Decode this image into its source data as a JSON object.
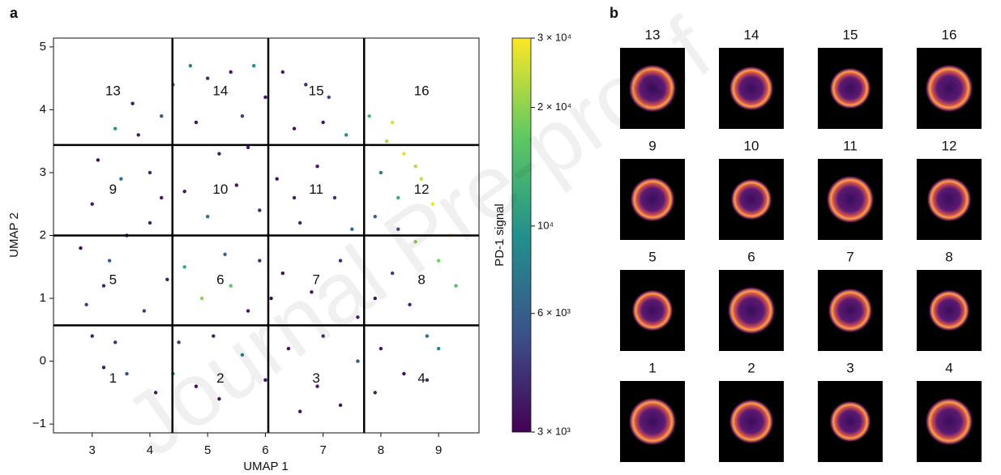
{
  "chart_data": [
    {
      "type": "scatter",
      "panel_label": "a",
      "xlabel": "UMAP 1",
      "ylabel": "UMAP 2",
      "xlim": [
        2.33,
        9.7
      ],
      "ylim": [
        -1.14,
        5.14
      ],
      "xticks": [
        3,
        4,
        5,
        6,
        7,
        8,
        9
      ],
      "yticks": [
        {
          "value": -1,
          "label": "−1"
        },
        0,
        1,
        2,
        3,
        4,
        5
      ],
      "x_boundaries": [
        4.39,
        6.05,
        7.71
      ],
      "y_boundaries": [
        0.57,
        2.0,
        3.44
      ],
      "regions": [
        "1",
        "2",
        "3",
        "4",
        "5",
        "6",
        "7",
        "8",
        "9",
        "10",
        "11",
        "12",
        "13",
        "14",
        "15",
        "16"
      ],
      "x": [
        3.0,
        3.2,
        3.4,
        3.1,
        3.6,
        3.8,
        3.5,
        2.8,
        3.3,
        3.9,
        4.1,
        4.0,
        3.7,
        4.2,
        4.3,
        2.9,
        3.6,
        4.0,
        3.2,
        4.4,
        4.7,
        5.0,
        5.4,
        5.8,
        4.8,
        5.2,
        5.6,
        6.0,
        4.6,
        5.0,
        5.5,
        5.9,
        4.6,
        4.9,
        5.3,
        5.7,
        4.5,
        4.8,
        5.2,
        5.6,
        6.0,
        5.1,
        5.9,
        6.3,
        6.7,
        7.1,
        6.5,
        6.9,
        7.4,
        6.2,
        6.6,
        7.2,
        7.5,
        6.3,
        6.8,
        7.3,
        7.6,
        6.4,
        6.9,
        7.3,
        6.6,
        7.6,
        7.0,
        7.8,
        8.1,
        8.4,
        8.7,
        8.0,
        8.9,
        9.2,
        8.3,
        7.9,
        9.0,
        8.6,
        9.3,
        8.2,
        7.9,
        8.5,
        8.8,
        8.0,
        8.4,
        8.8,
        9.0,
        7.9,
        8.2,
        8.6,
        8.3,
        4.2,
        3.4,
        5.4,
        6.1,
        6.5,
        7.0,
        5.7,
        4.4,
        3.0
      ],
      "y": [
        2.5,
        1.2,
        0.3,
        3.2,
        -0.2,
        3.6,
        2.9,
        1.8,
        1.6,
        0.8,
        -0.5,
        2.2,
        4.1,
        3.9,
        1.3,
        0.9,
        2.0,
        3.0,
        -0.1,
        4.4,
        4.7,
        4.5,
        4.6,
        4.7,
        3.8,
        3.3,
        3.9,
        4.2,
        2.7,
        2.3,
        2.8,
        2.4,
        1.5,
        1.0,
        1.7,
        0.8,
        0.3,
        -0.4,
        -0.6,
        0.1,
        -0.3,
        0.4,
        1.6,
        4.6,
        4.4,
        4.2,
        3.7,
        3.1,
        3.6,
        2.9,
        2.2,
        2.6,
        2.1,
        1.4,
        1.1,
        1.6,
        0.7,
        0.2,
        -0.4,
        -0.7,
        -0.8,
        0.0,
        0.4,
        3.9,
        3.5,
        3.3,
        2.9,
        3.0,
        2.5,
        2.0,
        2.6,
        2.3,
        1.6,
        1.9,
        1.2,
        1.4,
        1.0,
        0.9,
        0.4,
        0.2,
        -0.2,
        -0.3,
        0.2,
        -0.5,
        3.8,
        3.1,
        2.1,
        2.6,
        3.7,
        1.2,
        1.0,
        2.6,
        3.8,
        3.4,
        -0.2,
        0.4
      ],
      "values": [
        3500,
        3800,
        4200,
        3300,
        5000,
        3600,
        7000,
        3200,
        6000,
        4500,
        3400,
        3900,
        3500,
        5500,
        3700,
        4800,
        3300,
        4100,
        3600,
        6500,
        8000,
        4000,
        3500,
        9000,
        3400,
        3800,
        4500,
        3300,
        3600,
        7000,
        3400,
        4000,
        12000,
        20000,
        6000,
        3500,
        4500,
        3300,
        3600,
        8000,
        3400,
        3800,
        4200,
        3500,
        4000,
        5000,
        3300,
        3600,
        9000,
        3400,
        3800,
        4200,
        6500,
        3300,
        3500,
        4000,
        3700,
        3400,
        3600,
        3300,
        3500,
        5500,
        4200,
        14000,
        22000,
        27000,
        25000,
        8000,
        28000,
        30000,
        12000,
        6000,
        18000,
        20000,
        15000,
        4500,
        3400,
        3800,
        7000,
        3500,
        3300,
        4000,
        9000,
        3600,
        26000,
        23000,
        5000,
        3500,
        10000,
        16000,
        3300,
        3700,
        3400,
        3600,
        9000,
        3800
      ],
      "colorbar": {
        "label": "PD-1 signal",
        "log": true,
        "lim": [
          3000,
          30000
        ],
        "ticks": [
          {
            "value": 3000,
            "label": "3 × 10³"
          },
          {
            "value": 6000,
            "label": "6 × 10³"
          },
          {
            "value": 10000,
            "label": "10⁴"
          },
          {
            "value": 20000,
            "label": "2 × 10⁴"
          },
          {
            "value": 30000,
            "label": "3 × 10⁴"
          }
        ],
        "colormap": [
          "#440154",
          "#3b528b",
          "#21918c",
          "#5ec962",
          "#fde725"
        ]
      }
    },
    {
      "type": "image_grid",
      "panel_label": "b",
      "labels": [
        "13",
        "14",
        "15",
        "16",
        "9",
        "10",
        "11",
        "12",
        "5",
        "6",
        "7",
        "8",
        "1",
        "2",
        "3",
        "4"
      ]
    }
  ],
  "watermark": "Journal Pre-proof"
}
